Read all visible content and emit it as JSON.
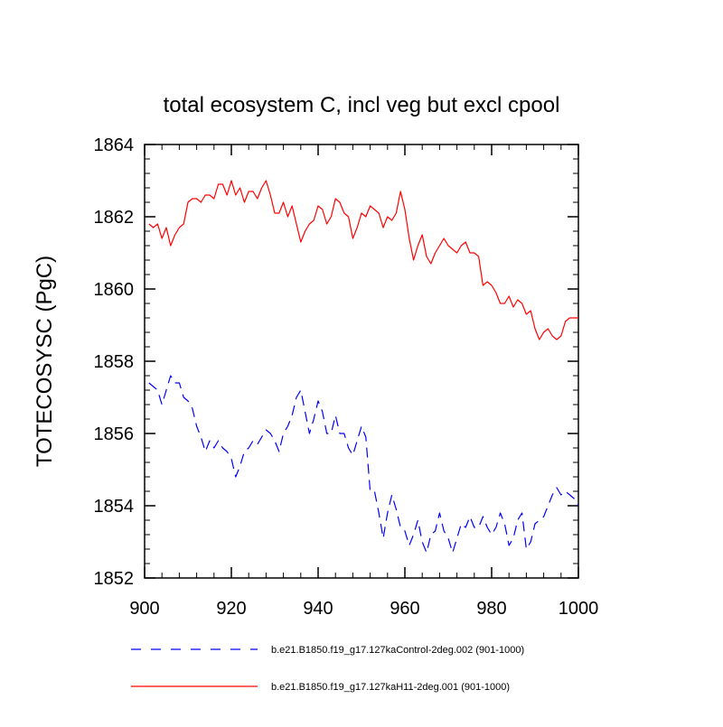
{
  "chart_data": {
    "type": "line",
    "title": "total ecosystem C, incl veg but excl cpool",
    "xlabel": "",
    "ylabel": "TOTECOSYSC  (PgC)",
    "xlim": [
      900,
      1000
    ],
    "ylim": [
      1852,
      1864
    ],
    "xticks": [
      900,
      920,
      940,
      960,
      980,
      1000
    ],
    "yticks": [
      1852,
      1854,
      1856,
      1858,
      1860,
      1862,
      1864
    ],
    "x_minor_step": 4,
    "y_minor_step": 0.4,
    "grid": false,
    "legend_position": "bottom",
    "series": [
      {
        "name": "b.e21.B1850.f19_g17.127kaControl-2deg.002 (901-1000)",
        "color": "#0000ff",
        "style": "dashed",
        "x_start": 901,
        "values": [
          1857.4,
          1857.3,
          1857.2,
          1856.8,
          1857.2,
          1857.6,
          1857.4,
          1857.4,
          1857.0,
          1856.9,
          1856.7,
          1856.2,
          1855.9,
          1855.5,
          1855.8,
          1855.6,
          1855.8,
          1855.6,
          1855.5,
          1855.3,
          1854.8,
          1855.1,
          1855.5,
          1855.6,
          1855.8,
          1855.7,
          1855.9,
          1856.1,
          1856.0,
          1855.8,
          1855.5,
          1856.0,
          1856.2,
          1856.5,
          1857.0,
          1857.2,
          1856.6,
          1856.0,
          1856.4,
          1856.9,
          1856.6,
          1856.0,
          1856.0,
          1856.5,
          1856.0,
          1856.0,
          1855.6,
          1855.4,
          1855.8,
          1856.2,
          1855.9,
          1854.4,
          1854.4,
          1853.8,
          1853.1,
          1853.8,
          1854.3,
          1853.9,
          1853.4,
          1853.3,
          1852.9,
          1853.2,
          1853.6,
          1853.0,
          1852.7,
          1853.2,
          1853.3,
          1853.8,
          1853.3,
          1853.1,
          1852.7,
          1853.1,
          1853.5,
          1853.4,
          1853.7,
          1853.4,
          1853.4,
          1853.7,
          1853.4,
          1853.2,
          1853.4,
          1853.8,
          1853.5,
          1852.9,
          1853.1,
          1853.6,
          1853.8,
          1852.8,
          1853.0,
          1853.5,
          1853.6,
          1853.7,
          1854.0,
          1854.3,
          1854.5,
          1854.3,
          1854.4,
          1854.3,
          1854.2,
          1854.0
        ]
      },
      {
        "name": "b.e21.B1850.f19_g17.127kaH11-2deg.001 (901-1000)",
        "color": "#ff0000",
        "style": "solid",
        "x_start": 901,
        "values": [
          1861.8,
          1861.7,
          1861.8,
          1861.4,
          1861.7,
          1861.2,
          1861.5,
          1861.7,
          1861.8,
          1862.4,
          1862.5,
          1862.5,
          1862.4,
          1862.6,
          1862.6,
          1862.5,
          1862.9,
          1862.9,
          1862.6,
          1863.0,
          1862.6,
          1862.8,
          1862.4,
          1862.7,
          1862.7,
          1862.5,
          1862.8,
          1863.0,
          1862.6,
          1862.1,
          1862.1,
          1862.4,
          1862.0,
          1862.3,
          1861.8,
          1861.3,
          1861.6,
          1861.8,
          1861.9,
          1862.3,
          1862.2,
          1861.8,
          1862.0,
          1862.5,
          1862.4,
          1862.1,
          1862.0,
          1861.4,
          1861.7,
          1862.1,
          1862.0,
          1862.3,
          1862.2,
          1862.1,
          1861.7,
          1862.0,
          1861.9,
          1862.1,
          1862.7,
          1862.2,
          1861.4,
          1860.8,
          1861.2,
          1861.5,
          1860.9,
          1860.7,
          1861.0,
          1861.2,
          1861.4,
          1861.2,
          1861.1,
          1861.0,
          1861.2,
          1861.3,
          1861.0,
          1861.0,
          1860.9,
          1860.1,
          1860.2,
          1860.1,
          1859.9,
          1859.6,
          1859.6,
          1859.8,
          1859.5,
          1859.7,
          1859.6,
          1859.3,
          1859.4,
          1858.9,
          1858.6,
          1858.8,
          1858.9,
          1858.7,
          1858.6,
          1858.7,
          1859.1,
          1859.2,
          1859.2,
          1859.2
        ]
      }
    ]
  }
}
